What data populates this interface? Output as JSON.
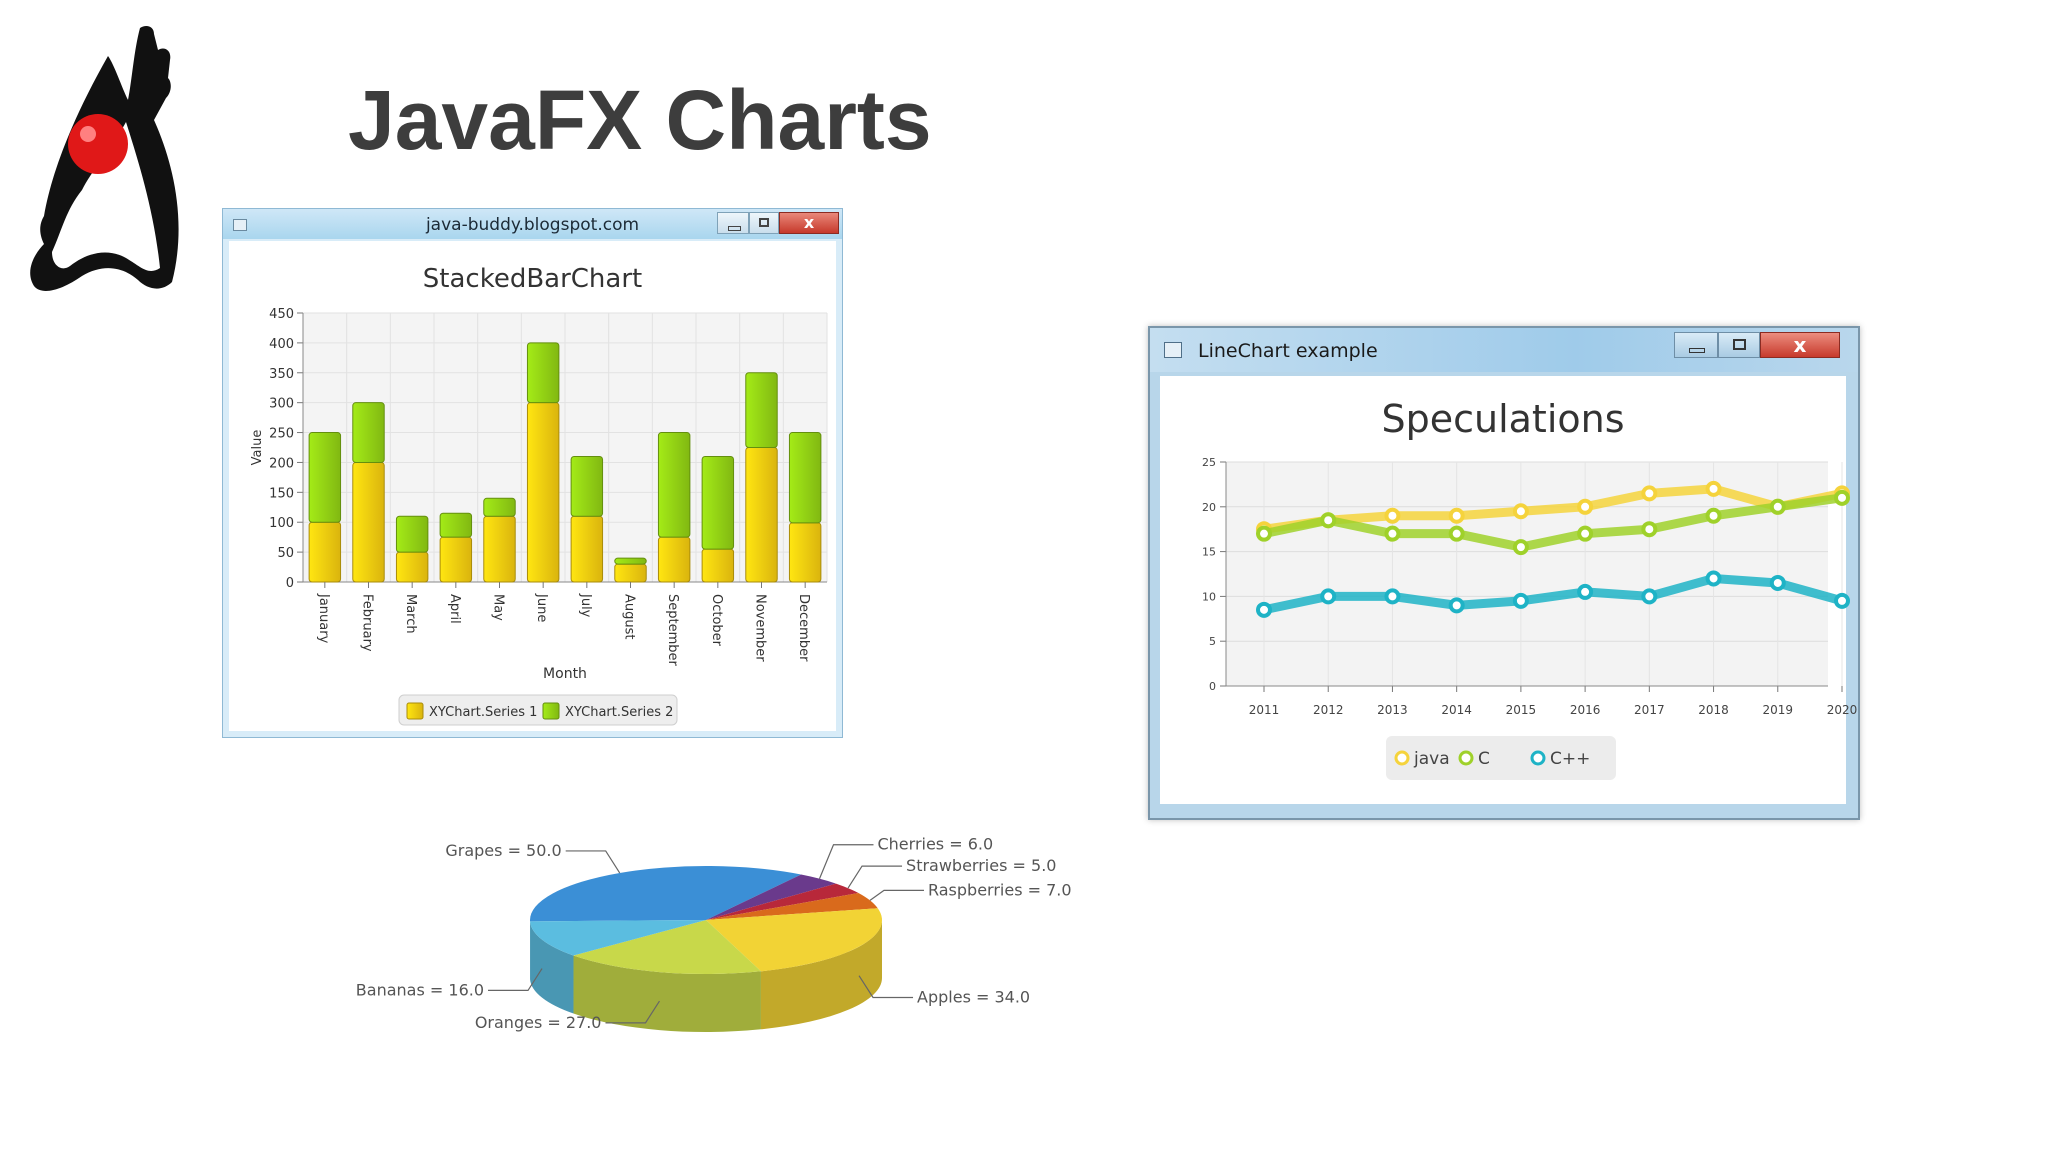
{
  "slide": {
    "title": "JavaFX Charts",
    "logo_icon": "duke-mascot-icon"
  },
  "window_bar": {
    "title": "java-buddy.blogspot.com",
    "buttons": [
      "minimize-icon",
      "maximize-icon",
      "close-icon"
    ],
    "close_glyph": "x"
  },
  "window_line": {
    "title": "LineChart example",
    "buttons": [
      "minimize-icon",
      "maximize-icon",
      "close-icon"
    ],
    "close_glyph": "x"
  },
  "chart_data": [
    {
      "type": "bar",
      "stacked": true,
      "title": "StackedBarChart",
      "xlabel": "Month",
      "ylabel": "Value",
      "ylim": [
        0,
        450
      ],
      "yticks": [
        0,
        50,
        100,
        150,
        200,
        250,
        300,
        350,
        400,
        450
      ],
      "grid": true,
      "legend_position": "bottom",
      "categories": [
        "January",
        "February",
        "March",
        "April",
        "May",
        "June",
        "July",
        "August",
        "September",
        "October",
        "November",
        "December"
      ],
      "series": [
        {
          "name": "XYChart.Series 1",
          "color": "#f2c80f",
          "values": [
            100,
            200,
            50,
            75,
            110,
            300,
            110,
            30,
            75,
            55,
            225,
            99
          ]
        },
        {
          "name": "XYChart.Series 2",
          "color": "#8fcc14",
          "values": [
            150,
            100,
            60,
            40,
            30,
            100,
            100,
            10,
            175,
            155,
            125,
            151
          ]
        }
      ]
    },
    {
      "type": "line",
      "title": "Speculations",
      "xlabel": "",
      "ylabel": "",
      "ylim": [
        0,
        25
      ],
      "yticks": [
        0,
        5,
        10,
        15,
        20,
        25
      ],
      "grid": true,
      "legend_position": "bottom",
      "x": [
        "2011",
        "2012",
        "2013",
        "2014",
        "2015",
        "2016",
        "2017",
        "2018",
        "2019",
        "2020"
      ],
      "series": [
        {
          "name": "java",
          "color": "#f5d33c",
          "values": [
            17.5,
            18.5,
            19,
            19,
            19.5,
            20,
            21.5,
            22,
            20,
            21.5
          ]
        },
        {
          "name": "C",
          "color": "#9fd12a",
          "values": [
            17,
            18.5,
            17,
            17,
            15.5,
            17,
            17.5,
            19,
            20,
            21
          ]
        },
        {
          "name": "C++",
          "color": "#1eb3c6",
          "values": [
            8.5,
            10,
            10,
            9,
            9.5,
            10.5,
            10,
            12,
            11.5,
            9.5
          ]
        }
      ]
    },
    {
      "type": "pie",
      "style": "3d",
      "title": "",
      "slices": [
        {
          "label": "Grapes = 50.0",
          "name": "Grapes",
          "value": 50.0,
          "color": "#3b8fd6"
        },
        {
          "label": "Cherries = 6.0",
          "name": "Cherries",
          "value": 6.0,
          "color": "#6a3a8c"
        },
        {
          "label": "Strawberries = 5.0",
          "name": "Strawberries",
          "value": 5.0,
          "color": "#b8283a"
        },
        {
          "label": "Raspberries = 7.0",
          "name": "Raspberries",
          "value": 7.0,
          "color": "#d96a1c"
        },
        {
          "label": "Apples = 34.0",
          "name": "Apples",
          "value": 34.0,
          "color": "#f2d335"
        },
        {
          "label": "Oranges = 27.0",
          "name": "Oranges",
          "value": 27.0,
          "color": "#c8d84a"
        },
        {
          "label": "Bananas = 16.0",
          "name": "Bananas",
          "value": 16.0,
          "color": "#5bbde0"
        }
      ]
    }
  ]
}
